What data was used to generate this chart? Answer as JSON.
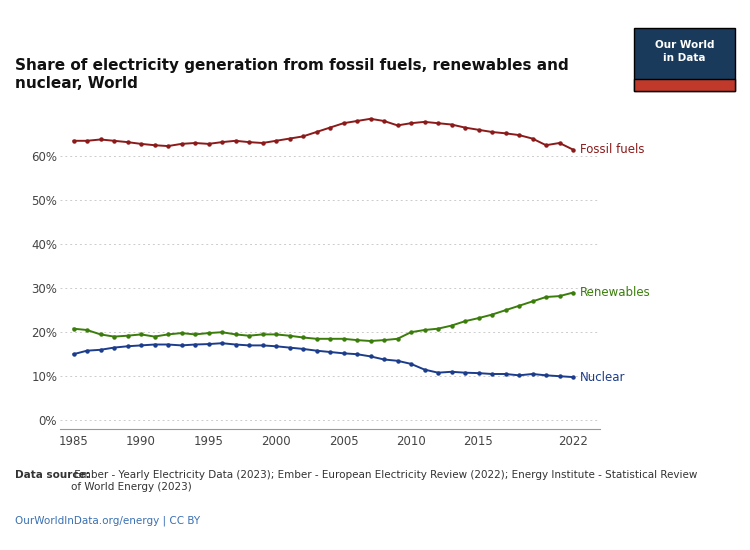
{
  "title": "Share of electricity generation from fossil fuels, renewables and\nnuclear, World",
  "fossil_fuels": {
    "years": [
      1985,
      1986,
      1987,
      1988,
      1989,
      1990,
      1991,
      1992,
      1993,
      1994,
      1995,
      1996,
      1997,
      1998,
      1999,
      2000,
      2001,
      2002,
      2003,
      2004,
      2005,
      2006,
      2007,
      2008,
      2009,
      2010,
      2011,
      2012,
      2013,
      2014,
      2015,
      2016,
      2017,
      2018,
      2019,
      2020,
      2021,
      2022
    ],
    "values": [
      63.5,
      63.5,
      63.8,
      63.5,
      63.2,
      62.8,
      62.5,
      62.3,
      62.8,
      63.0,
      62.8,
      63.2,
      63.5,
      63.2,
      63.0,
      63.5,
      64.0,
      64.5,
      65.5,
      66.5,
      67.5,
      68.0,
      68.5,
      68.0,
      67.0,
      67.5,
      67.8,
      67.5,
      67.2,
      66.5,
      66.0,
      65.5,
      65.2,
      64.8,
      64.0,
      62.5,
      63.0,
      61.5
    ],
    "color": "#8B1A1A",
    "label": "Fossil fuels"
  },
  "renewables": {
    "years": [
      1985,
      1986,
      1987,
      1988,
      1989,
      1990,
      1991,
      1992,
      1993,
      1994,
      1995,
      1996,
      1997,
      1998,
      1999,
      2000,
      2001,
      2002,
      2003,
      2004,
      2005,
      2006,
      2007,
      2008,
      2009,
      2010,
      2011,
      2012,
      2013,
      2014,
      2015,
      2016,
      2017,
      2018,
      2019,
      2020,
      2021,
      2022
    ],
    "values": [
      20.8,
      20.5,
      19.5,
      19.0,
      19.2,
      19.5,
      19.0,
      19.5,
      19.8,
      19.5,
      19.8,
      20.0,
      19.5,
      19.2,
      19.5,
      19.5,
      19.2,
      18.8,
      18.5,
      18.5,
      18.5,
      18.2,
      18.0,
      18.2,
      18.5,
      20.0,
      20.5,
      20.8,
      21.5,
      22.5,
      23.2,
      24.0,
      25.0,
      26.0,
      27.0,
      28.0,
      28.2,
      29.0
    ],
    "color": "#3a7d0a",
    "label": "Renewables"
  },
  "nuclear": {
    "years": [
      1985,
      1986,
      1987,
      1988,
      1989,
      1990,
      1991,
      1992,
      1993,
      1994,
      1995,
      1996,
      1997,
      1998,
      1999,
      2000,
      2001,
      2002,
      2003,
      2004,
      2005,
      2006,
      2007,
      2008,
      2009,
      2010,
      2011,
      2012,
      2013,
      2014,
      2015,
      2016,
      2017,
      2018,
      2019,
      2020,
      2021,
      2022
    ],
    "values": [
      15.0,
      15.8,
      16.0,
      16.5,
      16.8,
      17.0,
      17.2,
      17.2,
      17.0,
      17.2,
      17.3,
      17.5,
      17.2,
      17.0,
      17.0,
      16.8,
      16.5,
      16.2,
      15.8,
      15.5,
      15.2,
      15.0,
      14.5,
      13.8,
      13.5,
      12.8,
      11.5,
      10.8,
      11.0,
      10.8,
      10.7,
      10.5,
      10.5,
      10.2,
      10.5,
      10.2,
      10.0,
      9.8
    ],
    "color": "#1c3d8c",
    "label": "Nuclear"
  },
  "yticks": [
    0,
    10,
    20,
    30,
    40,
    50,
    60
  ],
  "xticks": [
    1985,
    1990,
    1995,
    2000,
    2005,
    2010,
    2015,
    2022
  ],
  "ylim": [
    -2,
    73
  ],
  "xlim": [
    1984,
    2024
  ],
  "bg_color": "#ffffff",
  "grid_color": "#cccccc",
  "datasource_bold": "Data source:",
  "datasource_rest": " Ember - Yearly Electricity Data (2023); Ember - European Electricity Review (2022); Energy Institute - Statistical Review\nof World Energy (2023)",
  "link_text": "OurWorldInData.org/energy | CC BY",
  "owid_box_color": "#1a3a5c",
  "owid_red_color": "#c0392b",
  "owid_text": "Our World\nin Data"
}
